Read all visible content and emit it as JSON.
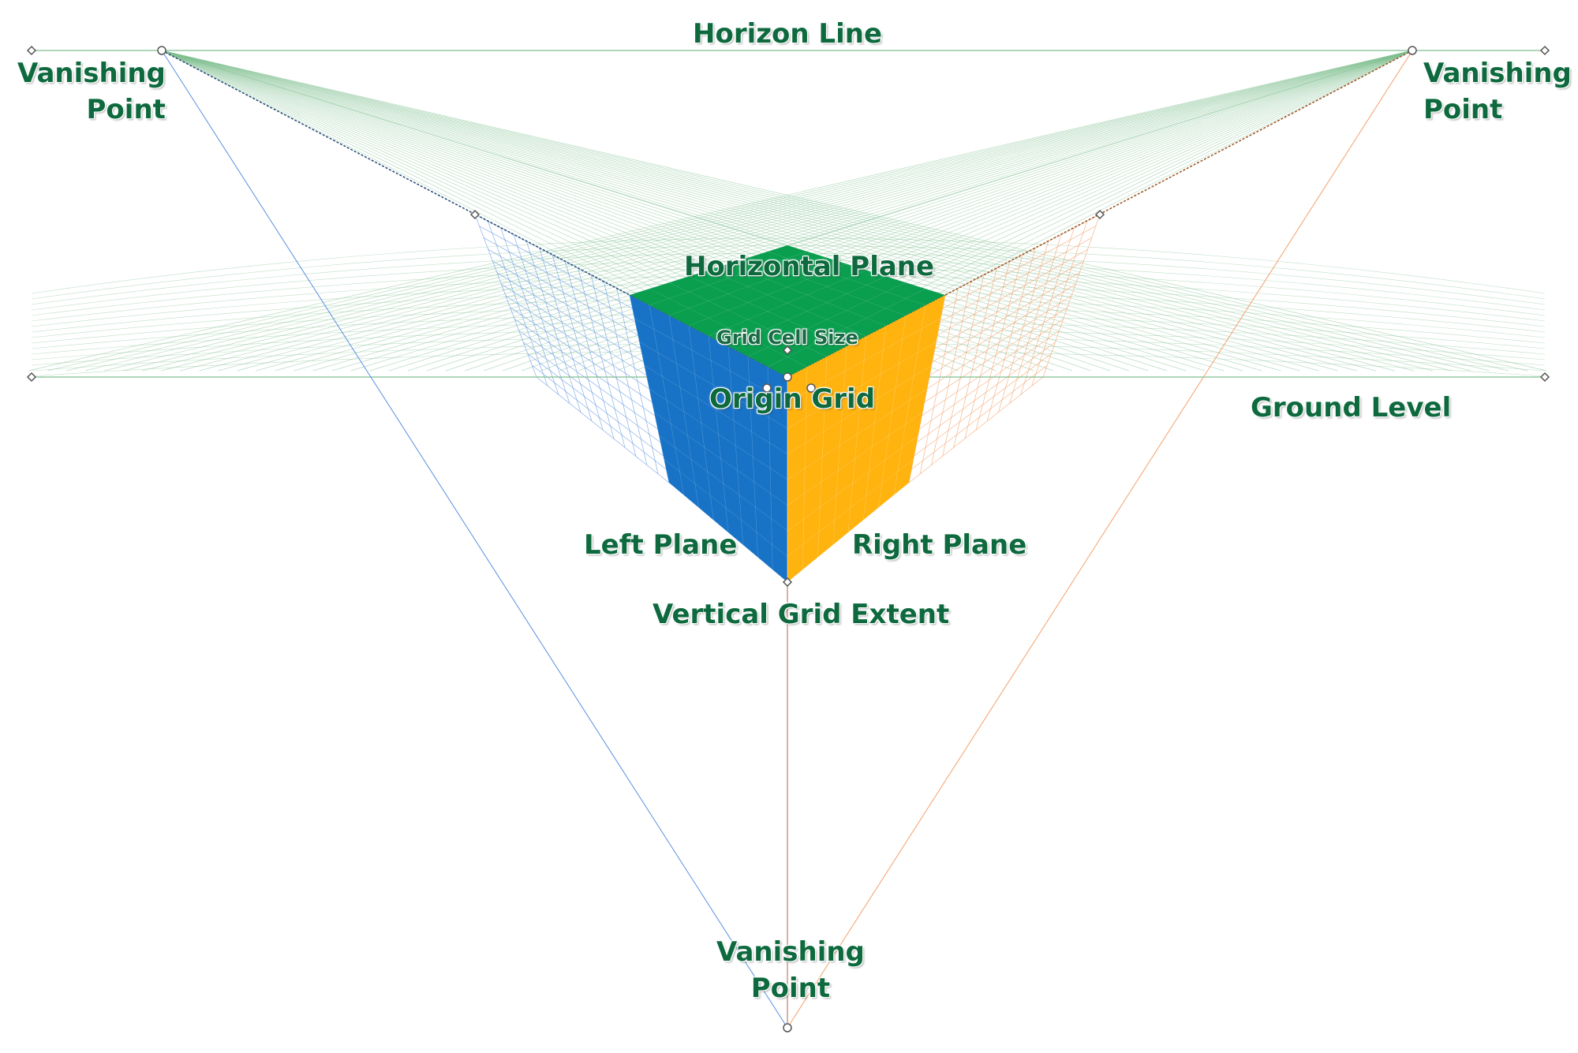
{
  "labels": {
    "horizon_line": "Horizon Line",
    "vanishing_point_left": [
      "Vanishing",
      "Point"
    ],
    "vanishing_point_right": [
      "Vanishing",
      "Point"
    ],
    "vanishing_point_bottom": [
      "Vanishing",
      "Point"
    ],
    "horizontal_plane": "Horizontal Plane",
    "grid_cell_size": "Grid Cell Size",
    "origin_grid": "Origin Grid",
    "ground_level": "Ground Level",
    "left_plane": "Left Plane",
    "right_plane": "Right Plane",
    "vertical_grid_extent": "Vertical Grid Extent"
  },
  "colors": {
    "label_text": "#0e6a3e",
    "horizontal_plane": "#0a9e4f",
    "left_plane": "#1873c6",
    "right_plane": "#ffb30f",
    "ground_grid_lines": "#7fbf8f",
    "left_grid_lines": "#5a8fe0",
    "right_grid_lines": "#f4a06a",
    "vertical_guide": "#c97a6a"
  }
}
